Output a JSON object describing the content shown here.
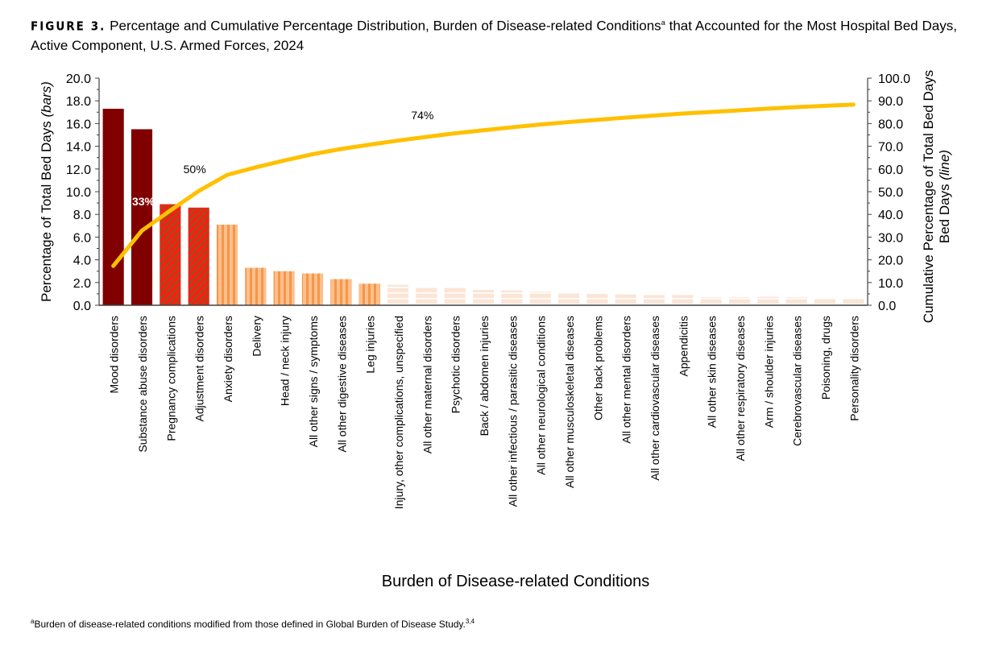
{
  "title": {
    "figure_label": "FIGURE 3.",
    "text": "Percentage and Cumulative Percentage Distribution, Burden of Disease-related Conditions",
    "superscript": "a",
    "text_after": "that Accounted for the Most Hospital Bed Days, Active Component, U.S. Armed Forces, 2024"
  },
  "footnote": {
    "marker": "a",
    "text": "Burden of disease-related conditions modified from those defined in Global Burden of Disease Study.",
    "refs": "3,4"
  },
  "chart_data": {
    "type": "bar+line",
    "xlabel": "Burden of Disease-related Conditions",
    "ylabel_left": "Percentage of Total Bed Days",
    "ylabel_left_italic": "(bars)",
    "ylabel_right": "Cumulative Percentage of Total Bed Days",
    "ylabel_right_italic": "(line)",
    "ylim_left": [
      0,
      20
    ],
    "ylim_right": [
      0,
      100
    ],
    "yticks_left": [
      "0.0",
      "2.0",
      "4.0",
      "6.0",
      "8.0",
      "10.0",
      "12.0",
      "14.0",
      "16.0",
      "18.0",
      "20.0"
    ],
    "yticks_right": [
      "0.0",
      "10.0",
      "20.0",
      "30.0",
      "40.0",
      "50.0",
      "60.0",
      "70.0",
      "80.0",
      "90.0",
      "100.0"
    ],
    "grid": false,
    "categories": [
      "Mood disorders",
      "Substance abuse disorders",
      "Pregnancy complications",
      "Adjustment disorders",
      "Anxiety disorders",
      "Delivery",
      "Head / neck injury",
      "All other signs / symptoms",
      "All other digestive diseases",
      "Leg injuries",
      "Injury, other complications, unspecified",
      "All other maternal disorders",
      "Psychotic disorders",
      "Back / abdomen injuries",
      "All other infectious / parasitic diseases",
      "All other neurological conditions",
      "All other musculoskeletal diseases",
      "Other back problems",
      "All other mental disorders",
      "All other cardiovascular diseases",
      "Appendicitis",
      "All other skin diseases",
      "All other respiratory diseases",
      "Arm / shoulder injuries",
      "Cerebrovascular diseases",
      "Poisoning, drugs",
      "Personality disorders"
    ],
    "values": [
      17.3,
      15.5,
      8.9,
      8.6,
      7.1,
      3.3,
      3.0,
      2.8,
      2.3,
      1.9,
      1.8,
      1.6,
      1.6,
      1.35,
      1.3,
      1.2,
      1.1,
      1.0,
      0.95,
      0.9,
      0.9,
      0.7,
      0.7,
      0.75,
      0.7,
      0.55,
      0.55
    ],
    "bar_styles": [
      "dark",
      "dark",
      "hatch",
      "hatch",
      "vstripe",
      "vstripe",
      "vstripe",
      "vstripe",
      "vstripe",
      "vstripe",
      "hstripe",
      "hstripe",
      "hstripe",
      "hstripe",
      "hstripe",
      "hstripe",
      "hstripe",
      "hstripe",
      "hstripe",
      "hstripe",
      "hstripe",
      "hstripe",
      "hstripe",
      "hstripe",
      "hstripe",
      "hstripe",
      "hstripe"
    ],
    "line_series": "cumulative percentage",
    "annotations": [
      {
        "text": "33%",
        "category_index": 1
      },
      {
        "text": "50%",
        "category_index": 3
      },
      {
        "text": "74%",
        "category_index": 11
      }
    ],
    "colors": {
      "dark": "#800000",
      "hatch_red": "#ff1a1a",
      "hatch_dark": "#8a5a10",
      "orange": "#f79646",
      "orange_light": "#fbc08f",
      "peach": "#fbe5d6",
      "line": "#ffc000"
    }
  }
}
